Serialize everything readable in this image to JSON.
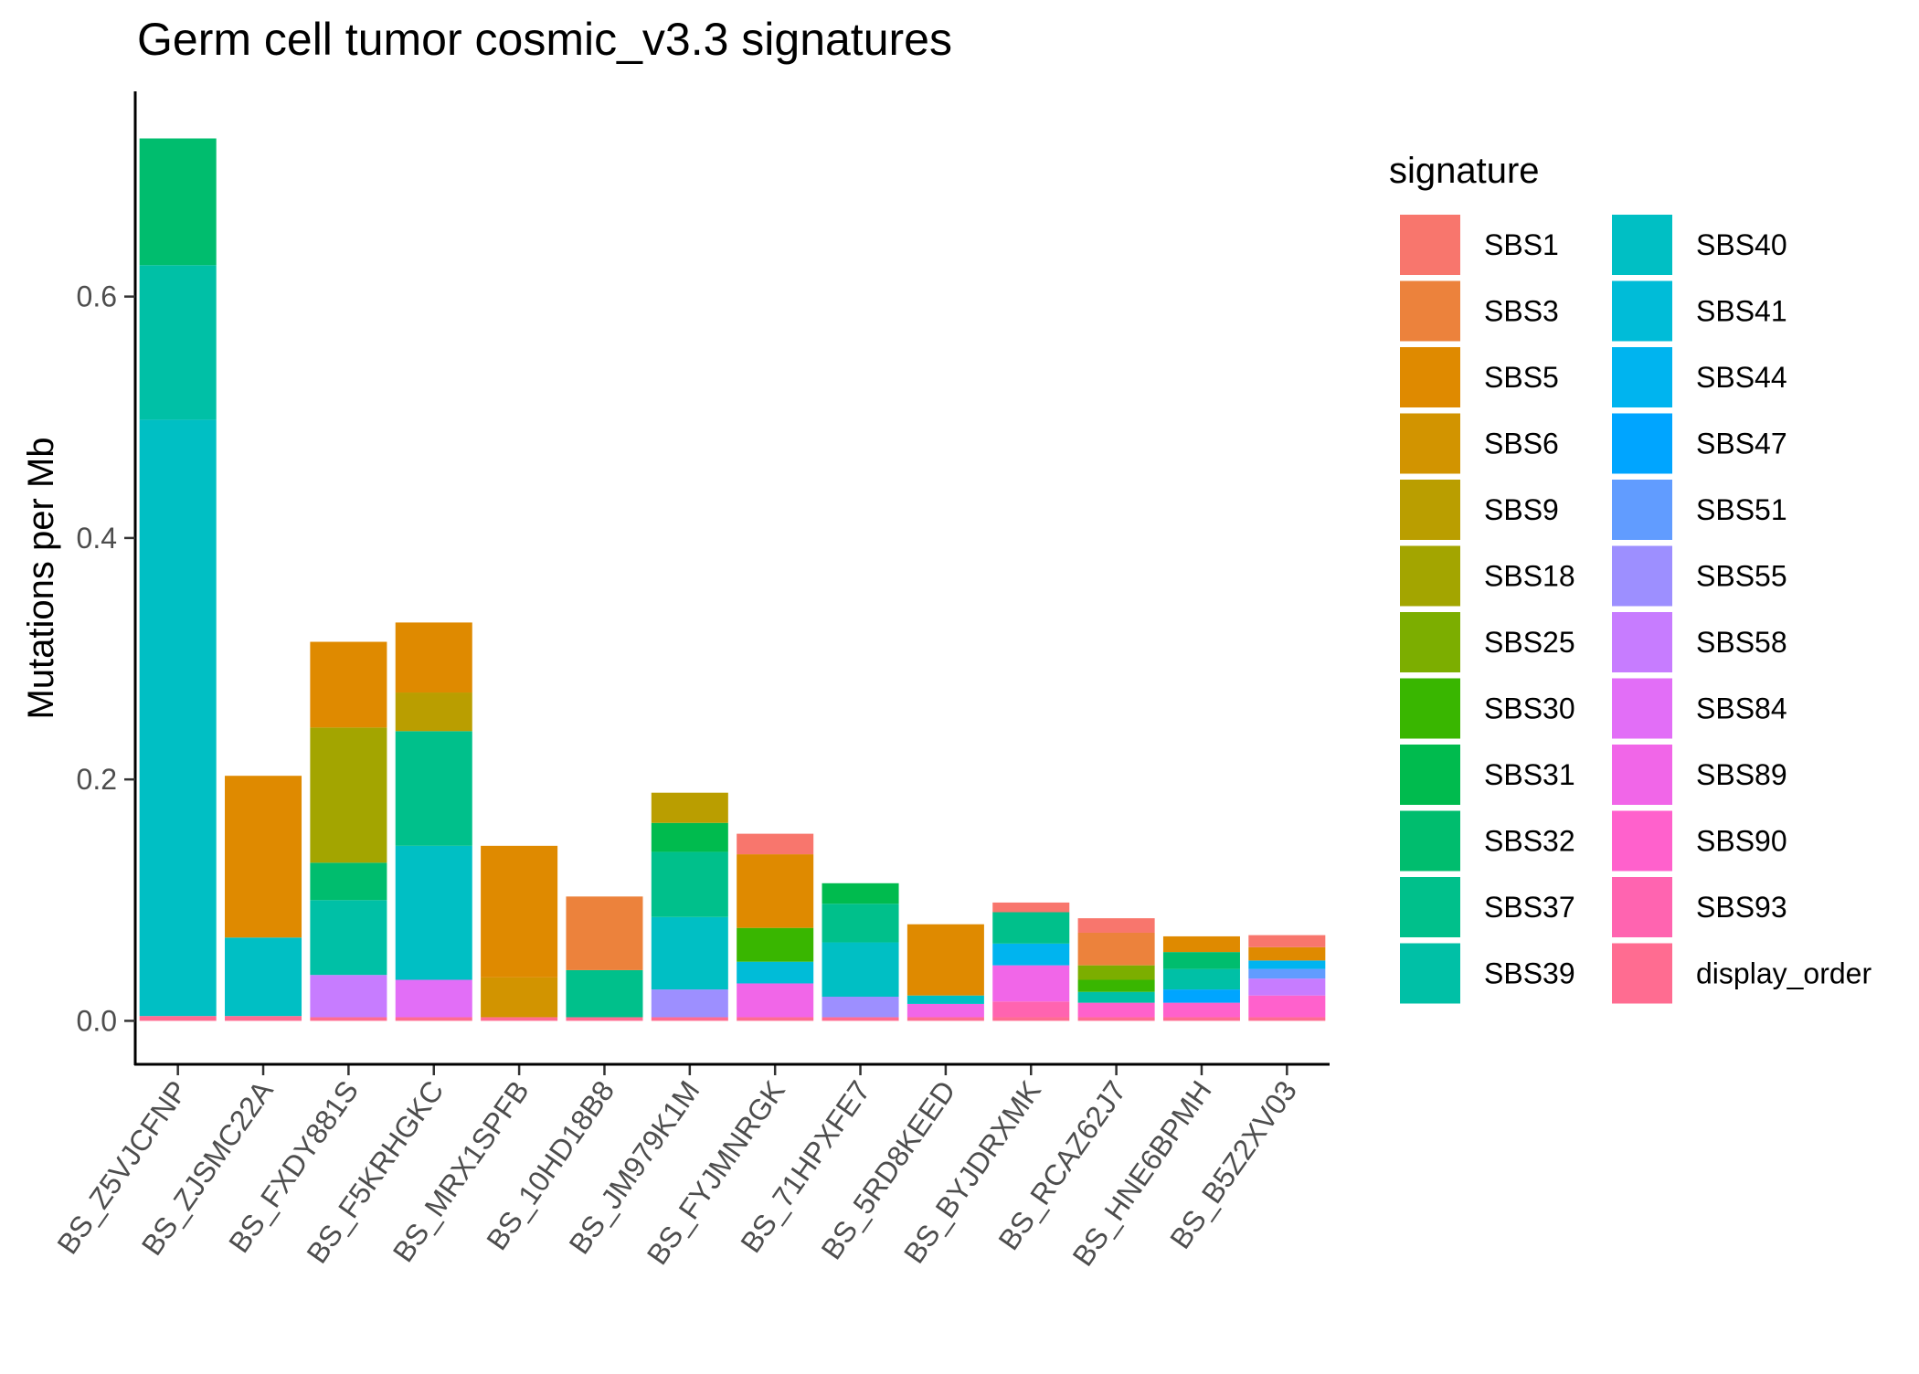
{
  "chart_data": {
    "type": "bar",
    "stacked": true,
    "title": "Germ cell tumor cosmic_v3.3 signatures",
    "xlabel": "",
    "ylabel": "Mutations per Mb",
    "ylim": [
      -0.036,
      0.77
    ],
    "yticks": [
      0.0,
      0.2,
      0.4,
      0.6
    ],
    "ytick_labels": [
      "0.0",
      "0.2",
      "0.4",
      "0.6"
    ],
    "grid": false,
    "legend_position": "right",
    "legend_title": "signature",
    "categories": [
      "BS_Z5VJCFNP",
      "BS_ZJSMC22A",
      "BS_FXDY881S",
      "BS_F5KRHGKC",
      "BS_MRX1SPFB",
      "BS_10HD18B8",
      "BS_JM979K1M",
      "BS_FYJMNRGK",
      "BS_71HPXFE7",
      "BS_5RD8KEED",
      "BS_BYJDRXMK",
      "BS_RCAZ62J7",
      "BS_HNE6BPMH",
      "BS_B5Z2XV03"
    ],
    "series": [
      {
        "name": "SBS1",
        "color": "#F8766D",
        "values": [
          0,
          0,
          0,
          0,
          0,
          0,
          0,
          0.017,
          0,
          0,
          0.008,
          0.012,
          0,
          0.01
        ]
      },
      {
        "name": "SBS3",
        "color": "#EC823C",
        "values": [
          0,
          0,
          0,
          0,
          0,
          0.061,
          0,
          0,
          0,
          0,
          0,
          0.027,
          0,
          0
        ]
      },
      {
        "name": "SBS5",
        "color": "#DF8A00",
        "values": [
          0,
          0.134,
          0.071,
          0.058,
          0.109,
          0,
          0,
          0.061,
          0,
          0.059,
          0,
          0,
          0.013,
          0.011
        ]
      },
      {
        "name": "SBS6",
        "color": "#D29400",
        "values": [
          0,
          0,
          0,
          0,
          0.033,
          0,
          0,
          0,
          0,
          0,
          0,
          0,
          0,
          0
        ]
      },
      {
        "name": "SBS9",
        "color": "#BA9E00",
        "values": [
          0,
          0,
          0,
          0.032,
          0,
          0,
          0.025,
          0,
          0,
          0,
          0,
          0,
          0,
          0
        ]
      },
      {
        "name": "SBS18",
        "color": "#A3A500",
        "values": [
          0,
          0,
          0.112,
          0,
          0,
          0,
          0,
          0,
          0,
          0,
          0,
          0,
          0,
          0
        ]
      },
      {
        "name": "SBS25",
        "color": "#7CAE00",
        "values": [
          0,
          0,
          0,
          0,
          0,
          0,
          0,
          0,
          0,
          0,
          0,
          0.012,
          0,
          0
        ]
      },
      {
        "name": "SBS30",
        "color": "#39B600",
        "values": [
          0,
          0,
          0,
          0,
          0,
          0,
          0,
          0.028,
          0,
          0,
          0,
          0.01,
          0,
          0
        ]
      },
      {
        "name": "SBS31",
        "color": "#00BB4E",
        "values": [
          0,
          0,
          0,
          0,
          0,
          0,
          0.024,
          0,
          0.017,
          0,
          0,
          0,
          0,
          0
        ]
      },
      {
        "name": "SBS32",
        "color": "#00BD6E",
        "values": [
          0.105,
          0,
          0.031,
          0,
          0,
          0,
          0,
          0,
          0,
          0,
          0,
          0,
          0.014,
          0
        ]
      },
      {
        "name": "SBS37",
        "color": "#00C08B",
        "values": [
          0,
          0,
          0,
          0.095,
          0,
          0.039,
          0.054,
          0,
          0.032,
          0,
          0.026,
          0,
          0,
          0
        ]
      },
      {
        "name": "SBS39",
        "color": "#00C0A6",
        "values": [
          0.128,
          0,
          0.062,
          0,
          0,
          0,
          0,
          0,
          0,
          0,
          0,
          0.009,
          0.017,
          0
        ]
      },
      {
        "name": "SBS40",
        "color": "#00BFC4",
        "values": [
          0.494,
          0.065,
          0,
          0.111,
          0,
          0,
          0.06,
          0,
          0.045,
          0.007,
          0,
          0,
          0,
          0
        ]
      },
      {
        "name": "SBS41",
        "color": "#00BCD8",
        "values": [
          0,
          0,
          0,
          0,
          0,
          0,
          0,
          0.018,
          0,
          0,
          0,
          0,
          0,
          0
        ]
      },
      {
        "name": "SBS44",
        "color": "#00B4EF",
        "values": [
          0,
          0,
          0,
          0,
          0,
          0,
          0,
          0,
          0,
          0,
          0.018,
          0,
          0,
          0.007
        ]
      },
      {
        "name": "SBS47",
        "color": "#00A5FF",
        "values": [
          0,
          0,
          0,
          0,
          0,
          0,
          0,
          0,
          0,
          0,
          0,
          0,
          0.011,
          0
        ]
      },
      {
        "name": "SBS51",
        "color": "#619CFF",
        "values": [
          0,
          0,
          0,
          0,
          0,
          0,
          0,
          0,
          0,
          0,
          0,
          0,
          0,
          0.008
        ]
      },
      {
        "name": "SBS55",
        "color": "#9D8FFF",
        "values": [
          0,
          0,
          0,
          0,
          0,
          0,
          0.023,
          0,
          0.017,
          0,
          0,
          0,
          0,
          0
        ]
      },
      {
        "name": "SBS58",
        "color": "#C77CFF",
        "values": [
          0,
          0,
          0.035,
          0,
          0,
          0,
          0,
          0,
          0,
          0,
          0,
          0,
          0,
          0.014
        ]
      },
      {
        "name": "SBS84",
        "color": "#E26EF7",
        "values": [
          0,
          0,
          0,
          0.031,
          0,
          0,
          0,
          0,
          0,
          0,
          0,
          0,
          0,
          0
        ]
      },
      {
        "name": "SBS89",
        "color": "#F166E8",
        "values": [
          0,
          0,
          0,
          0,
          0,
          0,
          0,
          0.028,
          0,
          0.011,
          0.03,
          0,
          0,
          0
        ]
      },
      {
        "name": "SBS90",
        "color": "#FF61CC",
        "values": [
          0,
          0,
          0,
          0,
          0,
          0,
          0,
          0,
          0,
          0,
          0,
          0.012,
          0.012,
          0.018
        ]
      },
      {
        "name": "SBS93",
        "color": "#FF64B0",
        "values": [
          0,
          0,
          0,
          0,
          0,
          0,
          0,
          0,
          0,
          0,
          0.013,
          0,
          0,
          0
        ]
      },
      {
        "name": "display_order",
        "color": "#FF6C91",
        "values": [
          0.004,
          0.004,
          0.003,
          0.003,
          0.003,
          0.003,
          0.003,
          0.003,
          0.003,
          0.003,
          0.003,
          0.003,
          0.003,
          0.003
        ]
      }
    ]
  }
}
